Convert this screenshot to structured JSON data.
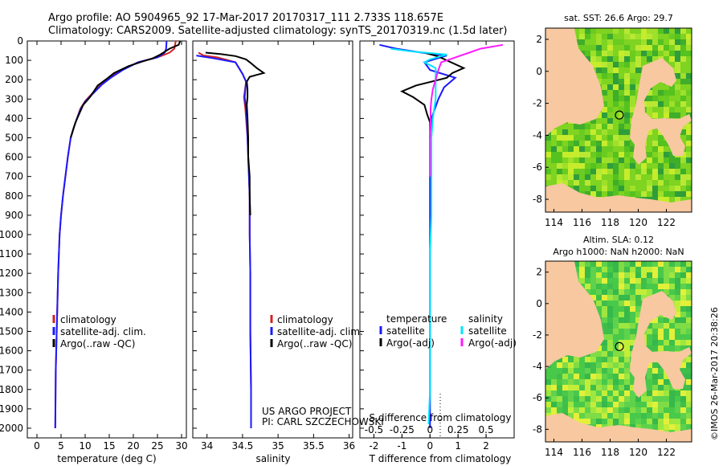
{
  "header": {
    "line1": "Argo profile: AO 5904965_92 17-Mar-2017 20170317_111 2.733S 118.657E",
    "line2": "Climatology: CARS2009. Satellite-adjusted climatology: synTS_20170319.nc (1.5d later)"
  },
  "colors": {
    "climatology": "#d42020",
    "satellite": "#1a1aff",
    "argo": "#000000",
    "salinity_satellite": "#00e5ff",
    "salinity_argo": "#ff1aff",
    "land": "#f8c8a0"
  },
  "chart_data": [
    {
      "type": "line",
      "panel": "temperature",
      "xlabel": "temperature (deg C)",
      "xticks": [
        "0",
        "5",
        "10",
        "15",
        "20",
        "25",
        "30"
      ],
      "xlim": [
        -2,
        31
      ],
      "ylim": [
        2050,
        0
      ],
      "yticks": [
        "0",
        "100",
        "200",
        "300",
        "400",
        "500",
        "600",
        "700",
        "800",
        "900",
        "1000",
        "1100",
        "1200",
        "1300",
        "1400",
        "1500",
        "1600",
        "1700",
        "1800",
        "1900",
        "2000"
      ],
      "legend": [
        "climatology",
        "satellite-adj. clim.",
        "Argo(..raw -QC)"
      ],
      "series": [
        {
          "name": "climatology",
          "color_key": "climatology",
          "points": [
            [
              28.8,
              0
            ],
            [
              28.5,
              40
            ],
            [
              27.5,
              60
            ],
            [
              25.5,
              80
            ],
            [
              21,
              110
            ],
            [
              17.5,
              150
            ],
            [
              15,
              190
            ],
            [
              13.5,
              220
            ],
            [
              11.5,
              270
            ],
            [
              10,
              310
            ],
            [
              9,
              350
            ],
            [
              8.3,
              400
            ],
            [
              7.6,
              450
            ],
            [
              7,
              500
            ],
            [
              6.4,
              600
            ],
            [
              5.9,
              700
            ],
            [
              5.4,
              800
            ],
            [
              5,
              900
            ],
            [
              4.7,
              1000
            ],
            [
              4.4,
              1200
            ],
            [
              4.2,
              1400
            ],
            [
              4.1,
              1500
            ],
            [
              3.9,
              1700
            ],
            [
              3.8,
              2000
            ]
          ]
        },
        {
          "name": "satellite-adj. clim.",
          "color_key": "satellite",
          "points": [
            [
              26.9,
              0
            ],
            [
              26.8,
              40
            ],
            [
              26.5,
              60
            ],
            [
              25,
              85
            ],
            [
              21,
              110
            ],
            [
              17.8,
              150
            ],
            [
              15.3,
              190
            ],
            [
              13.5,
              225
            ],
            [
              11.7,
              270
            ],
            [
              10.1,
              310
            ],
            [
              9.1,
              350
            ],
            [
              8.3,
              400
            ],
            [
              7.6,
              450
            ],
            [
              7,
              500
            ],
            [
              6.4,
              600
            ],
            [
              5.9,
              700
            ],
            [
              5.4,
              800
            ],
            [
              5,
              900
            ],
            [
              4.7,
              1000
            ],
            [
              4.4,
              1200
            ],
            [
              4.2,
              1400
            ],
            [
              4.1,
              1500
            ],
            [
              3.9,
              1700
            ],
            [
              3.8,
              2000
            ]
          ]
        },
        {
          "name": "Argo(..raw -QC)",
          "color_key": "argo",
          "points": [
            [
              29.7,
              0
            ],
            [
              29.4,
              20
            ],
            [
              27.5,
              40
            ],
            [
              25.6,
              70
            ],
            [
              24,
              90
            ],
            [
              22,
              105
            ],
            [
              19,
              130
            ],
            [
              16,
              165
            ],
            [
              14.5,
              195
            ],
            [
              12.6,
              230
            ],
            [
              11,
              290
            ],
            [
              9.6,
              330
            ],
            [
              8.7,
              380
            ],
            [
              8,
              420
            ],
            [
              7.5,
              460
            ],
            [
              7,
              500
            ]
          ]
        }
      ]
    },
    {
      "type": "line",
      "panel": "salinity",
      "xlabel": "salinity",
      "xticks": [
        "34",
        "34.5",
        "35",
        "35.5",
        "36"
      ],
      "xlim": [
        33.8,
        36.05
      ],
      "ylim": [
        2050,
        0
      ],
      "legend": [
        "climatology",
        "satellite-adj. clim.",
        "Argo(..raw -QC)"
      ],
      "annotation_lines": [
        "US ARGO PROJECT",
        "PI: CARL SZCZECHOWSKI"
      ],
      "series": [
        {
          "name": "climatology",
          "color_key": "climatology",
          "points": [
            [
              33.88,
              60
            ],
            [
              33.95,
              75
            ],
            [
              34.15,
              85
            ],
            [
              34.4,
              110
            ],
            [
              34.5,
              170
            ],
            [
              34.55,
              210
            ],
            [
              34.52,
              290
            ],
            [
              34.54,
              350
            ],
            [
              34.55,
              400
            ],
            [
              34.57,
              500
            ],
            [
              34.58,
              600
            ],
            [
              34.59,
              700
            ],
            [
              34.6,
              800
            ],
            [
              34.6,
              1000
            ],
            [
              34.61,
              1200
            ],
            [
              34.61,
              1500
            ],
            [
              34.62,
              1800
            ],
            [
              34.62,
              2000
            ]
          ]
        },
        {
          "name": "satellite-adj. clim.",
          "color_key": "satellite",
          "points": [
            [
              33.85,
              75
            ],
            [
              34.1,
              90
            ],
            [
              34.4,
              110
            ],
            [
              34.5,
              170
            ],
            [
              34.55,
              210
            ],
            [
              34.53,
              290
            ],
            [
              34.55,
              350
            ],
            [
              34.56,
              400
            ],
            [
              34.57,
              500
            ],
            [
              34.58,
              600
            ],
            [
              34.59,
              700
            ],
            [
              34.6,
              800
            ],
            [
              34.6,
              1000
            ],
            [
              34.61,
              1200
            ],
            [
              34.61,
              1500
            ],
            [
              34.62,
              1800
            ],
            [
              34.62,
              2000
            ]
          ]
        },
        {
          "name": "Argo(..raw -QC)",
          "color_key": "argo",
          "points": [
            [
              33.98,
              60
            ],
            [
              34.2,
              68
            ],
            [
              34.4,
              78
            ],
            [
              34.55,
              95
            ],
            [
              34.62,
              115
            ],
            [
              34.7,
              140
            ],
            [
              34.8,
              165
            ],
            [
              34.7,
              175
            ],
            [
              34.6,
              185
            ],
            [
              34.56,
              210
            ],
            [
              34.57,
              250
            ],
            [
              34.57,
              290
            ],
            [
              34.56,
              330
            ],
            [
              34.57,
              400
            ],
            [
              34.58,
              500
            ],
            [
              34.58,
              600
            ],
            [
              34.6,
              700
            ],
            [
              34.6,
              800
            ],
            [
              34.61,
              900
            ]
          ]
        }
      ]
    },
    {
      "type": "line",
      "panel": "difference",
      "xlabel": "T difference from climatology",
      "xlabel2": "S difference from climatology",
      "xticks": [
        "-2",
        "-1",
        "0",
        "1",
        "2"
      ],
      "xticks_salinity": [
        "-0.5",
        "-0.25",
        "0",
        "0.25",
        "0.5"
      ],
      "xlim": [
        -2.5,
        3.0
      ],
      "ylim": [
        2050,
        0
      ],
      "legend_headers": [
        "temperature",
        "salinity"
      ],
      "legend": [
        "satellite",
        "Argo(-adj)",
        "satellite",
        "Argo(-adj)"
      ],
      "series": [
        {
          "name": "temperature satellite",
          "color_key": "satellite",
          "points": [
            [
              -1.8,
              20
            ],
            [
              -1.2,
              40
            ],
            [
              -0.3,
              60
            ],
            [
              0.6,
              75
            ],
            [
              -0.2,
              110
            ],
            [
              0,
              150
            ],
            [
              0.9,
              190
            ],
            [
              0.5,
              240
            ],
            [
              0.3,
              300
            ],
            [
              0.05,
              400
            ],
            [
              0,
              500
            ],
            [
              0,
              600
            ],
            [
              0,
              800
            ],
            [
              0,
              1000
            ],
            [
              0,
              1500
            ],
            [
              0,
              2000
            ]
          ]
        },
        {
          "name": "temperature Argo(-adj)",
          "color_key": "argo",
          "points": [
            [
              -0.2,
              60
            ],
            [
              0.3,
              80
            ],
            [
              1.2,
              140
            ],
            [
              0.8,
              165
            ],
            [
              0.6,
              190
            ],
            [
              -0.5,
              230
            ],
            [
              -1.0,
              260
            ],
            [
              -0.6,
              290
            ],
            [
              -0.2,
              330
            ],
            [
              -0.1,
              380
            ],
            [
              0,
              420
            ],
            [
              0,
              460
            ],
            [
              0,
              500
            ]
          ]
        },
        {
          "name": "salinity satellite",
          "color_key": "salinity_satellite",
          "points": [
            [
              -1.4,
              40
            ],
            [
              -0.6,
              55
            ],
            [
              0.6,
              70
            ],
            [
              0,
              95
            ],
            [
              -0.2,
              110
            ],
            [
              0.2,
              140
            ],
            [
              0.2,
              200
            ],
            [
              0.2,
              300
            ],
            [
              0.15,
              350
            ],
            [
              0.1,
              400
            ],
            [
              0.05,
              500
            ],
            [
              0.05,
              700
            ],
            [
              0.05,
              900
            ],
            [
              0,
              1100
            ],
            [
              0,
              1500
            ],
            [
              0,
              1800
            ],
            [
              -0.05,
              1980
            ]
          ]
        },
        {
          "name": "salinity Argo(-adj)",
          "color_key": "salinity_argo",
          "points": [
            [
              2.6,
              20
            ],
            [
              1.8,
              40
            ],
            [
              1.4,
              60
            ],
            [
              1.0,
              80
            ],
            [
              0.4,
              110
            ],
            [
              0.3,
              150
            ],
            [
              0.2,
              200
            ],
            [
              0.1,
              250
            ],
            [
              0.05,
              300
            ],
            [
              0.02,
              350
            ],
            [
              0.02,
              400
            ],
            [
              0,
              500
            ],
            [
              0,
              600
            ],
            [
              0,
              700
            ]
          ]
        }
      ]
    },
    {
      "type": "heatmap",
      "panel": "sst-map",
      "title": "sat. SST: 26.6 Argo: 29.7",
      "xticks": [
        "114",
        "116",
        "118",
        "120",
        "122"
      ],
      "yticks": [
        "2",
        "0",
        "-2",
        "-4",
        "-6",
        "-8"
      ],
      "xlim": [
        113.4,
        123.8
      ],
      "ylim": [
        -8.8,
        2.7
      ],
      "marker": [
        118.657,
        -2.733
      ]
    },
    {
      "type": "heatmap",
      "panel": "sla-map",
      "title_line1": "Altim. SLA: 0.12",
      "title_line2": "Argo h1000: NaN h2000: NaN",
      "xticks": [
        "114",
        "116",
        "118",
        "120",
        "122"
      ],
      "yticks": [
        "2",
        "0",
        "-2",
        "-4",
        "-6",
        "-8"
      ],
      "xlim": [
        113.4,
        123.8
      ],
      "ylim": [
        -8.8,
        2.7
      ],
      "marker": [
        118.657,
        -2.733
      ]
    }
  ],
  "credit": "©IMOS 26-Mar-2017 20:38:26"
}
